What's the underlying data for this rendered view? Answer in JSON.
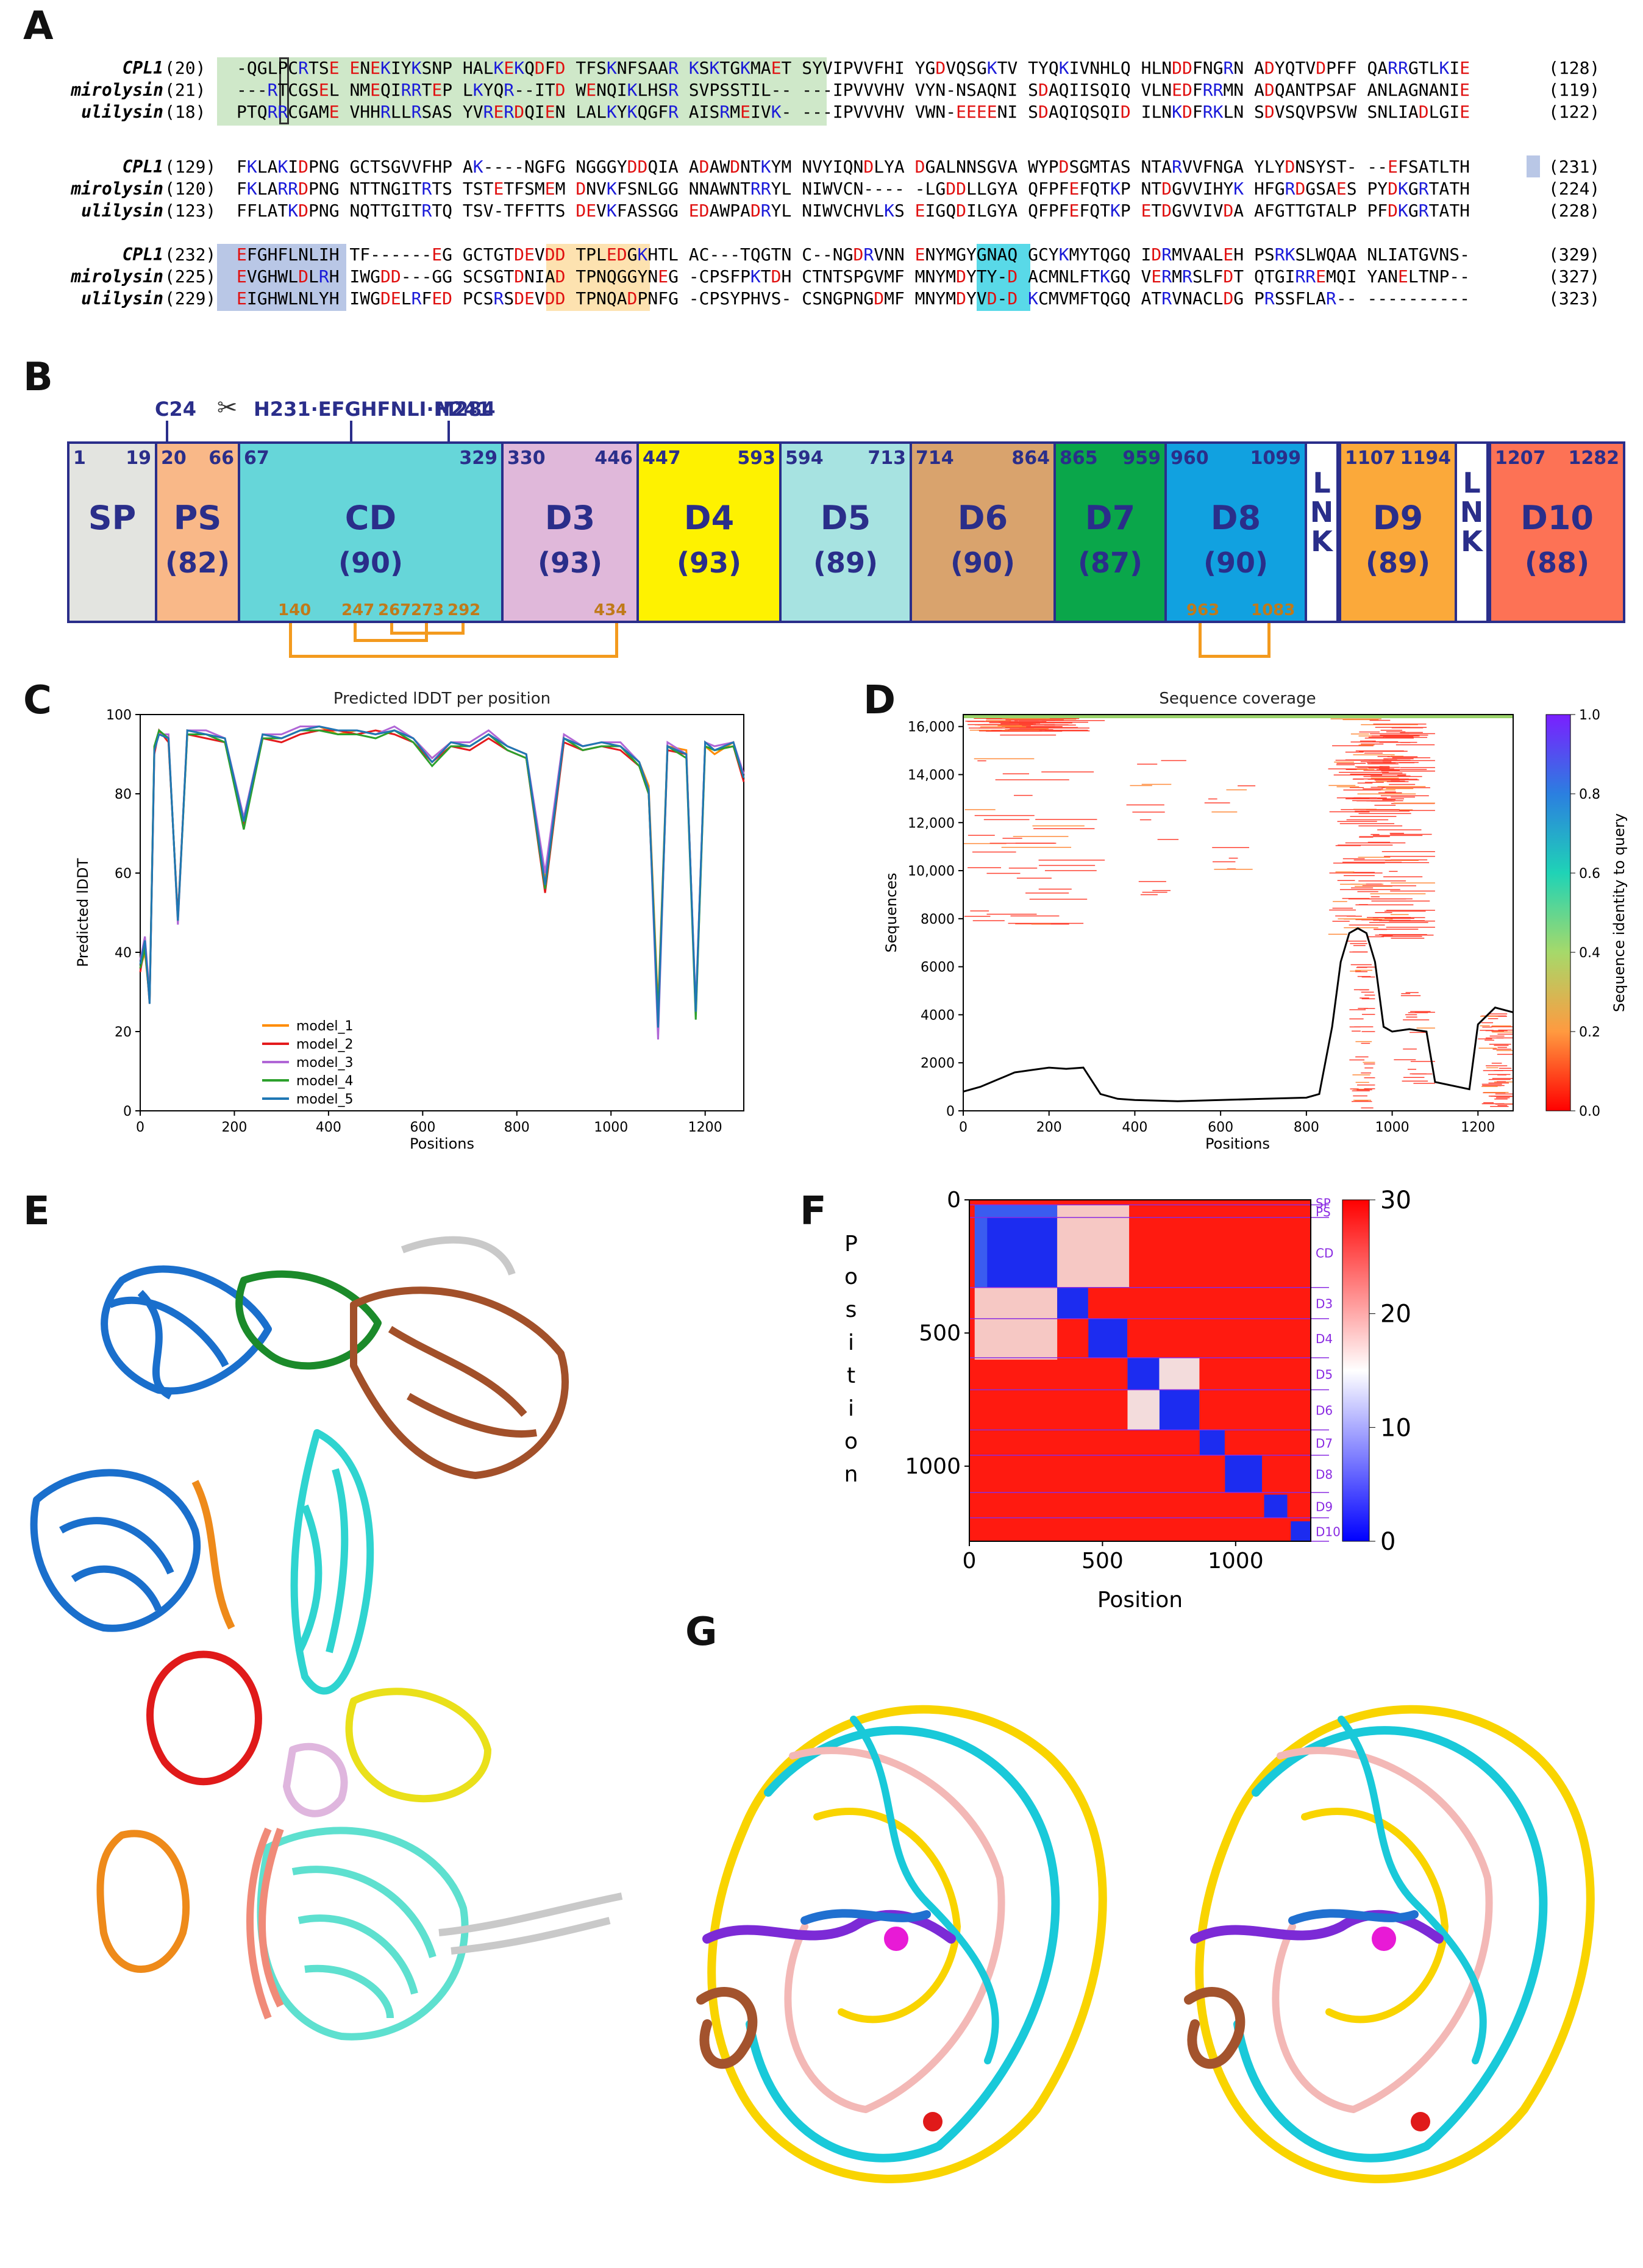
{
  "panels": {
    "a": "A",
    "b": "B",
    "c": "C",
    "d": "D",
    "e": "E",
    "f": "F",
    "g": "G"
  },
  "alignment": {
    "blocks": [
      {
        "rows": [
          {
            "name": "CPL1",
            "start": "(20)",
            "seq": "-QGLPCRTSE ENEKIYKSNP HALKEKQDFD TFSKNFSAAR KSKTGKMAET SYVIPVVFHI YGDVQSGKTV TYQKIVNHLQ HLNDDFNGRN ADYQTVDPFF QARRGTLKIE",
            "end": "(128)"
          },
          {
            "name": "mirolysin",
            "start": "(21)",
            "seq": "---RTCGSEL NMEQIRRTEP LKYQR--ITD WENQIKLHSR SVPSSTIL-- ---IPVVVHV VYN-NSAQNI SDAQIISQIQ VLNEDFRRMN ADQANTPSAF ANLAGNANIE",
            "end": "(119)"
          },
          {
            "name": "ulilysin",
            "start": "(18)",
            "seq": "PTQRRCGAME VHHRLLRSAS YVRERDQIEN LALKYKQGFR AISRMEIVK- ---IPVVVHV VWN-EEEENI SDAQIQSQID ILNKDFRKLN SDVSQVPSVW SNLIADLGIE",
            "end": "(122)"
          }
        ]
      },
      {
        "rows": [
          {
            "name": "CPL1",
            "start": "(129)",
            "seq": "FKLAKIDPNG GCTSGVVFHP AK----NGFG NGGGYDDQIA ADAWDNTKYM NVYIQNDLYA DGALNNSGVA WYPDSGMTAS NTARVVFNGA YLYDNSYST- --EFSATLTH",
            "end": "(231)"
          },
          {
            "name": "mirolysin",
            "start": "(120)",
            "seq": "FKLARRDPNG NTTNGITRTS TSTETFSMEM DNVKFSNLGG NNAWNTRRYL NIWVCN---- -LGDDLLGYA QFPFEFQTKP NTDGVVIHYK HFGRDGSAES PYDKGRTATH",
            "end": "(224)"
          },
          {
            "name": "ulilysin",
            "start": "(123)",
            "seq": "FFLATKDPNG NQTTGITRTQ TSV-TFFTTS DEVKFASSGG EDAWPADRYL NIWVCHVLKS EIGQDILGYA QFPFEFQTKP ETDGVVIVDA AFGTTGTALP PFDKGRTATH",
            "end": "(228)"
          }
        ]
      },
      {
        "rows": [
          {
            "name": "CPL1",
            "start": "(232)",
            "seq": "EFGHFLNLIH TF------EG GCTGTDEVDD TPLEDGKHTL AC---TQGTN C--NGDRVNN ENYMGYGNAQ GCYKMYTQGQ IDRMVAALEH PSRKSLWQAA NLIATGVNS-",
            "end": "(329)"
          },
          {
            "name": "mirolysin",
            "start": "(225)",
            "seq": "EVGHWLDLRH IWGDD---GG SCSGTDNIAD TPNQGGYNEG -CPSFPKTDH CTNTSPGVMF MNYMDYTY-D ACMNLFTKGQ VERMRSLFDT QTGIRREMQI YANELTNP--",
            "end": "(327)"
          },
          {
            "name": "ulilysin",
            "start": "(229)",
            "seq": "EIGHWLNLYH IWGDELRFED PCSRSDEVDD TPNQADPNFG -CPSYPHVS- CSNGPNGDMF MNYMDYVD-D KCMVMFTQGQ ATRVNACLDG PRSSFLAR-- ----------",
            "end": "(323)"
          }
        ]
      }
    ]
  },
  "domain_map": {
    "top_marks": {
      "c24": "C24",
      "motif": "H231·EFGHFNLI·H241",
      "m284": "M284",
      "scissors": "✂"
    },
    "domains": [
      {
        "id": "sp",
        "label": "SP",
        "start": "1",
        "end": "19",
        "pct": "",
        "color": "#e3e4e0"
      },
      {
        "id": "ps",
        "label": "PS",
        "start": "20",
        "end": "66",
        "pct": "(82)",
        "color": "#f9b888"
      },
      {
        "id": "cd",
        "label": "CD",
        "start": "67",
        "end": "329",
        "pct": "(90)",
        "color": "#66d6d9"
      },
      {
        "id": "d3",
        "label": "D3",
        "start": "330",
        "end": "446",
        "pct": "(93)",
        "color": "#e0b8da"
      },
      {
        "id": "d4",
        "label": "D4",
        "start": "447",
        "end": "593",
        "pct": "(93)",
        "color": "#fef200"
      },
      {
        "id": "d5",
        "label": "D5",
        "start": "594",
        "end": "713",
        "pct": "(89)",
        "color": "#a7e3e1"
      },
      {
        "id": "d6",
        "label": "D6",
        "start": "714",
        "end": "864",
        "pct": "(90)",
        "color": "#d9a36d"
      },
      {
        "id": "d7",
        "label": "D7",
        "start": "865",
        "end": "959",
        "pct": "(87)",
        "color": "#0aa64a"
      },
      {
        "id": "d8",
        "label": "D8",
        "start": "960",
        "end": "1099",
        "pct": "(90)",
        "color": "#11a1e0"
      },
      {
        "id": "d9",
        "label": "D9",
        "start": "1107",
        "end": "1194",
        "pct": "(89)",
        "color": "#fba93a"
      },
      {
        "id": "d10",
        "label": "D10",
        "start": "1207",
        "end": "1282",
        "pct": "(88)",
        "color": "#fd7255"
      }
    ],
    "linker": "LNK",
    "disulfides": [
      "140",
      "247",
      "267",
      "273",
      "292",
      "434",
      "963",
      "1083"
    ]
  },
  "chart_data": [
    {
      "type": "line",
      "title": "Predicted lDDT per position",
      "xlabel": "Positions",
      "ylabel": "Predicted lDDT",
      "xlim": [
        0,
        1282
      ],
      "ylim": [
        0,
        100
      ],
      "xticks": [
        "0",
        "200",
        "400",
        "600",
        "800",
        "1000",
        "1200"
      ],
      "yticks": [
        "0",
        "20",
        "40",
        "60",
        "80",
        "100"
      ],
      "legend_position": "lower-left",
      "x": [
        0,
        10,
        20,
        30,
        40,
        60,
        80,
        100,
        140,
        180,
        220,
        260,
        300,
        340,
        380,
        420,
        460,
        500,
        540,
        580,
        620,
        660,
        700,
        740,
        780,
        820,
        860,
        900,
        940,
        980,
        1020,
        1060,
        1080,
        1100,
        1120,
        1160,
        1180,
        1200,
        1220,
        1260,
        1282
      ],
      "series": [
        {
          "name": "model_1",
          "color": "#ff8c00",
          "values": [
            36,
            40,
            28,
            92,
            95,
            94,
            48,
            96,
            95,
            94,
            73,
            95,
            94,
            96,
            97,
            95,
            96,
            95,
            96,
            94,
            89,
            93,
            92,
            95,
            92,
            90,
            58,
            94,
            92,
            93,
            92,
            88,
            82,
            26,
            92,
            91,
            24,
            92,
            90,
            93,
            84
          ]
        },
        {
          "name": "model_2",
          "color": "#e41a1c",
          "values": [
            35,
            42,
            27,
            90,
            96,
            93,
            49,
            95,
            94,
            93,
            72,
            94,
            93,
            95,
            96,
            96,
            95,
            96,
            95,
            93,
            88,
            92,
            91,
            94,
            91,
            89,
            55,
            93,
            91,
            92,
            91,
            87,
            80,
            22,
            91,
            90,
            25,
            93,
            91,
            92,
            83
          ]
        },
        {
          "name": "model_3",
          "color": "#b066d6",
          "values": [
            38,
            44,
            29,
            91,
            95,
            95,
            47,
            96,
            96,
            94,
            74,
            95,
            95,
            97,
            97,
            96,
            96,
            95,
            97,
            94,
            89,
            93,
            93,
            96,
            92,
            90,
            60,
            95,
            92,
            93,
            93,
            88,
            81,
            18,
            93,
            90,
            26,
            93,
            92,
            93,
            85
          ]
        },
        {
          "name": "model_4",
          "color": "#2ca02c",
          "values": [
            36,
            41,
            28,
            92,
            96,
            94,
            48,
            95,
            95,
            93,
            71,
            94,
            94,
            96,
            96,
            95,
            95,
            94,
            96,
            93,
            87,
            92,
            92,
            95,
            91,
            89,
            56,
            94,
            91,
            92,
            92,
            87,
            80,
            24,
            92,
            89,
            23,
            92,
            91,
            92,
            84
          ]
        },
        {
          "name": "model_5",
          "color": "#1f77b4",
          "values": [
            37,
            43,
            27,
            91,
            95,
            94,
            48,
            96,
            95,
            94,
            73,
            95,
            94,
            96,
            97,
            96,
            96,
            95,
            96,
            94,
            88,
            93,
            92,
            95,
            92,
            90,
            57,
            94,
            92,
            93,
            92,
            88,
            81,
            21,
            92,
            90,
            25,
            93,
            91,
            93,
            84
          ]
        }
      ]
    },
    {
      "type": "heatmap",
      "title": "Sequence coverage",
      "xlabel": "Positions",
      "ylabel": "Sequences",
      "xlim": [
        0,
        1282
      ],
      "ylim": [
        0,
        16500
      ],
      "xticks": [
        "0",
        "200",
        "400",
        "600",
        "800",
        "1000",
        "1200"
      ],
      "yticks": [
        "0",
        "2000",
        "4000",
        "6000",
        "8000",
        "10,000",
        "12,000",
        "14,000",
        "16,000"
      ],
      "colorbar_label": "Sequence identity to query",
      "colorbar_ticks": [
        "0.0",
        "0.2",
        "0.4",
        "0.6",
        "0.8",
        "1.0"
      ],
      "coverage_x": [
        0,
        40,
        80,
        120,
        160,
        200,
        240,
        280,
        320,
        360,
        400,
        500,
        600,
        700,
        800,
        830,
        860,
        880,
        900,
        920,
        940,
        960,
        980,
        1000,
        1040,
        1080,
        1100,
        1180,
        1200,
        1240,
        1282
      ],
      "coverage_y": [
        800,
        1000,
        1300,
        1600,
        1700,
        1800,
        1750,
        1800,
        700,
        500,
        450,
        400,
        450,
        500,
        550,
        700,
        3500,
        6200,
        7400,
        7600,
        7400,
        6200,
        3500,
        3300,
        3400,
        3300,
        1200,
        900,
        3600,
        4300,
        4100
      ]
    },
    {
      "type": "heatmap",
      "title": "",
      "xlabel": "Position",
      "ylabel": "Position",
      "xlim": [
        0,
        1282
      ],
      "ylim": [
        0,
        1282
      ],
      "xticks": [
        "0",
        "500",
        "1000"
      ],
      "yticks": [
        "0",
        "500",
        "1000"
      ],
      "colorbar_ticks": [
        "0",
        "10",
        "20",
        "30"
      ],
      "domain_labels": [
        "SP",
        "PS",
        "CD",
        "D3",
        "D4",
        "D5",
        "D6",
        "D7",
        "D8",
        "D9",
        "D10"
      ],
      "domain_bounds": [
        [
          1,
          19
        ],
        [
          20,
          66
        ],
        [
          67,
          329
        ],
        [
          330,
          446
        ],
        [
          447,
          593
        ],
        [
          594,
          713
        ],
        [
          714,
          864
        ],
        [
          865,
          959
        ],
        [
          960,
          1099
        ],
        [
          1107,
          1194
        ],
        [
          1207,
          1282
        ]
      ]
    }
  ]
}
